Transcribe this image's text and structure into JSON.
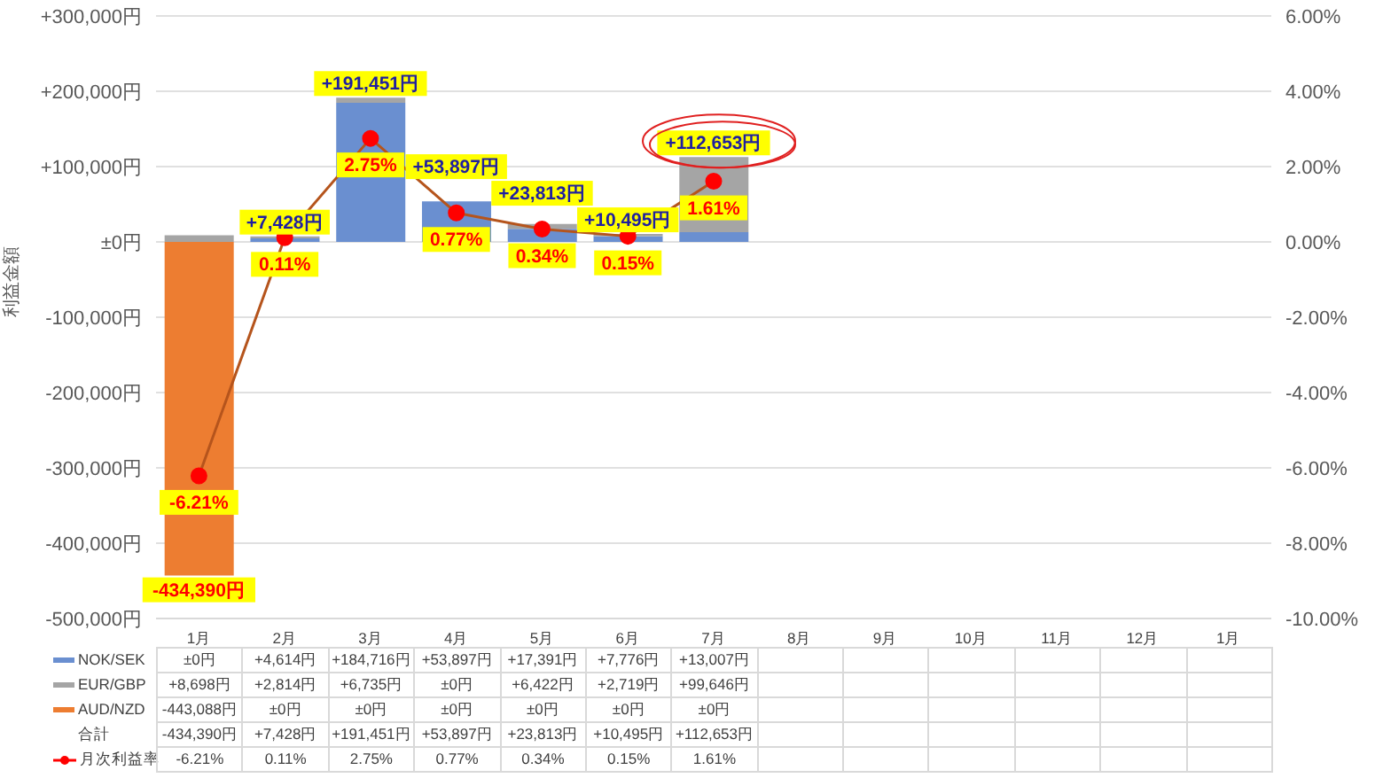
{
  "chart_data": {
    "type": "bar",
    "stacked": true,
    "ylabel": "利益金額",
    "categories": [
      "1月",
      "2月",
      "3月",
      "4月",
      "5月",
      "6月",
      "7月",
      "8月",
      "9月",
      "10月",
      "11月",
      "12月",
      "1月"
    ],
    "series": [
      {
        "name": "NOK/SEK",
        "color": "#6a8fd0",
        "values": [
          0,
          4614,
          184716,
          53897,
          17391,
          7776,
          13007,
          null,
          null,
          null,
          null,
          null,
          null
        ],
        "value_labels": [
          "±0円",
          "+4,614円",
          "+184,716円",
          "+53,897円",
          "+17,391円",
          "+7,776円",
          "+13,007円",
          null,
          null,
          null,
          null,
          null,
          null
        ]
      },
      {
        "name": "EUR/GBP",
        "color": "#a5a5a5",
        "values": [
          8698,
          2814,
          6735,
          0,
          6422,
          2719,
          99646,
          null,
          null,
          null,
          null,
          null,
          null
        ],
        "value_labels": [
          "+8,698円",
          "+2,814円",
          "+6,735円",
          "±0円",
          "+6,422円",
          "+2,719円",
          "+99,646円",
          null,
          null,
          null,
          null,
          null,
          null
        ]
      },
      {
        "name": "AUD/NZD",
        "color": "#ed7d31",
        "values": [
          -443088,
          0,
          0,
          0,
          0,
          0,
          0,
          null,
          null,
          null,
          null,
          null,
          null
        ],
        "value_labels": [
          "-443,088円",
          "±0円",
          "±0円",
          "±0円",
          "±0円",
          "±0円",
          "±0円",
          null,
          null,
          null,
          null,
          null,
          null
        ]
      },
      {
        "name": "月次利益率",
        "type": "line",
        "axis": "y2",
        "color": "#ff0000",
        "marker": "circle",
        "values": [
          -6.21,
          0.11,
          2.75,
          0.77,
          0.34,
          0.15,
          1.61,
          null,
          null,
          null,
          null,
          null,
          null
        ],
        "value_labels": [
          "-6.21%",
          "0.11%",
          "2.75%",
          "0.77%",
          "0.34%",
          "0.15%",
          "1.61%",
          null,
          null,
          null,
          null,
          null,
          null
        ]
      }
    ],
    "totals": [
      "-434,390円",
      "+7,428円",
      "+191,451円",
      "+53,897円",
      "+23,813円",
      "+10,495円",
      "+112,653円",
      null,
      null,
      null,
      null,
      null,
      null
    ],
    "annotations": [
      "合計"
    ],
    "ylim": [
      -500000,
      300000
    ],
    "yticks": [
      {
        "value": -500000,
        "label": "-500,000円"
      },
      {
        "value": -400000,
        "label": "-400,000円"
      },
      {
        "value": -300000,
        "label": "-300,000円"
      },
      {
        "value": -200000,
        "label": "-200,000円"
      },
      {
        "value": -100000,
        "label": "-100,000円"
      },
      {
        "value": 0,
        "label": "±0円"
      },
      {
        "value": 100000,
        "label": "+100,000円"
      },
      {
        "value": 200000,
        "label": "+200,000円"
      },
      {
        "value": 300000,
        "label": "+300,000円"
      }
    ],
    "y2lim": [
      -10,
      6
    ],
    "y2ticks": [
      {
        "value": -10,
        "label": "-10.00%"
      },
      {
        "value": -8,
        "label": "-8.00%"
      },
      {
        "value": -6,
        "label": "-6.00%"
      },
      {
        "value": -4,
        "label": "-4.00%"
      },
      {
        "value": -2,
        "label": "-2.00%"
      },
      {
        "value": 0,
        "label": "0.00%"
      },
      {
        "value": 2,
        "label": "2.00%"
      },
      {
        "value": 4,
        "label": "4.00%"
      },
      {
        "value": 6,
        "label": "6.00%"
      }
    ],
    "grid": "y",
    "legend": "bottom"
  }
}
